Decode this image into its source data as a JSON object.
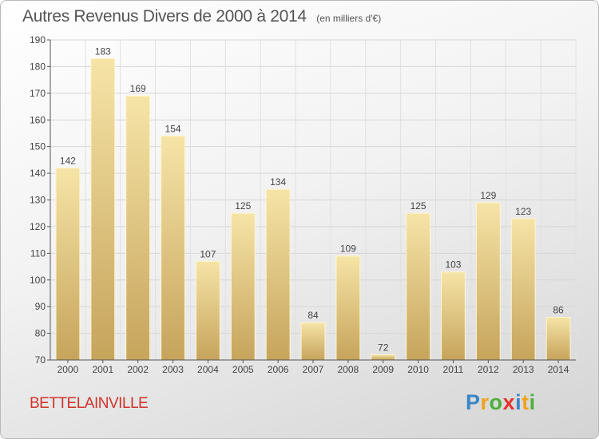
{
  "chart_data": {
    "type": "bar",
    "title": "Autres Revenus Divers de 2000 à 2014",
    "unit": "(en milliers d'€)",
    "categories": [
      "2000",
      "2001",
      "2002",
      "2003",
      "2004",
      "2005",
      "2006",
      "2007",
      "2008",
      "2009",
      "2010",
      "2011",
      "2012",
      "2013",
      "2014"
    ],
    "values": [
      142,
      183,
      169,
      154,
      107,
      125,
      134,
      84,
      109,
      72,
      125,
      103,
      129,
      123,
      86
    ],
    "ylim": [
      70,
      190
    ],
    "yticks": [
      70,
      80,
      90,
      100,
      110,
      120,
      130,
      140,
      150,
      160,
      170,
      180,
      190
    ],
    "grid": true,
    "bar_color": "#e8cf86"
  },
  "footer": {
    "commune": "BETTELAINVILLE",
    "logo_letters": [
      "P",
      "r",
      "o",
      "x",
      "i",
      "t",
      "i"
    ],
    "logo_colors": [
      "#3a86c9",
      "#f0a21a",
      "#4caf3a",
      "#e2332d",
      "#3a86c9",
      "#f0a21a",
      "#4caf3a"
    ]
  }
}
